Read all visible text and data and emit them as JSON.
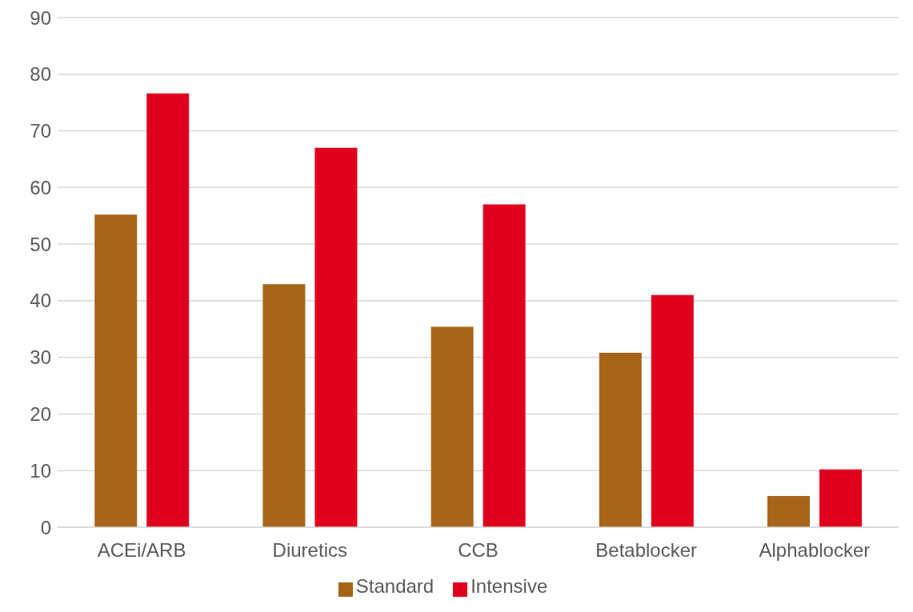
{
  "chart_data": {
    "type": "bar",
    "categories": [
      "ACEi/ARB",
      "Diuretics",
      "CCB",
      "Betablocker",
      "Alphablocker"
    ],
    "series": [
      {
        "name": "Standard",
        "color": "#a66419",
        "values": [
          55.2,
          42.9,
          35.4,
          30.8,
          5.5
        ]
      },
      {
        "name": "Intensive",
        "color": "#e0001e",
        "values": [
          76.6,
          67.0,
          57.0,
          41.0,
          10.2
        ]
      }
    ],
    "ylim": [
      0,
      90
    ],
    "yticks": [
      0,
      10,
      20,
      30,
      40,
      50,
      60,
      70,
      80,
      90
    ],
    "grid": "y",
    "legend": "bottom"
  }
}
